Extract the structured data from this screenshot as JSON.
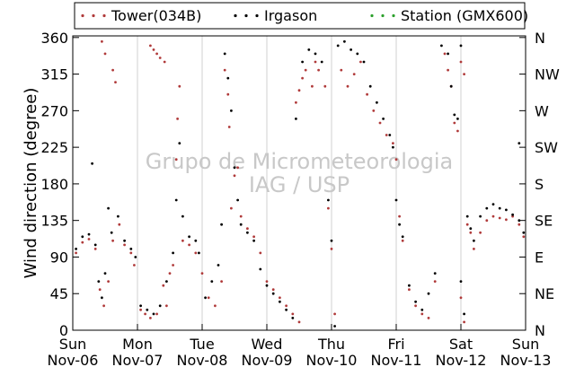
{
  "chart_data": {
    "type": "scatter",
    "ylabel": "Wind direction (degree)",
    "ylim": [
      0,
      362
    ],
    "xlim": [
      "2016-11-06",
      "2016-11-13"
    ],
    "y_ticks": [
      0,
      45,
      90,
      135,
      180,
      225,
      270,
      315,
      360
    ],
    "y2_ticks": [
      {
        "value": 0,
        "label": "N"
      },
      {
        "value": 45,
        "label": "NE"
      },
      {
        "value": 90,
        "label": "E"
      },
      {
        "value": 135,
        "label": "SE"
      },
      {
        "value": 180,
        "label": "S"
      },
      {
        "value": 225,
        "label": "SW"
      },
      {
        "value": 270,
        "label": "W"
      },
      {
        "value": 315,
        "label": "NW"
      },
      {
        "value": 360,
        "label": "N"
      }
    ],
    "x_ticks": [
      {
        "day": 0,
        "top": "Sun",
        "bottom": "Nov-06"
      },
      {
        "day": 1,
        "top": "Mon",
        "bottom": "Nov-07"
      },
      {
        "day": 2,
        "top": "Tue",
        "bottom": "Nov-08"
      },
      {
        "day": 3,
        "top": "Wed",
        "bottom": "Nov-09"
      },
      {
        "day": 4,
        "top": "Thu",
        "bottom": "Nov-10"
      },
      {
        "day": 5,
        "top": "Fri",
        "bottom": "Nov-11"
      },
      {
        "day": 6,
        "top": "Sat",
        "bottom": "Nov-12"
      },
      {
        "day": 7,
        "top": "Sun",
        "bottom": "Nov-13"
      }
    ],
    "grid": "vertical",
    "legend_position": "top",
    "watermark": [
      "Grupo de Micrometeorologia",
      "IAG / USP"
    ],
    "series": [
      {
        "name": "Tower(034B)",
        "color": "#b03a3a",
        "points": [
          [
            0.05,
            95
          ],
          [
            0.15,
            108
          ],
          [
            0.25,
            112
          ],
          [
            0.35,
            100
          ],
          [
            0.42,
            50
          ],
          [
            0.48,
            30
          ],
          [
            0.55,
            60
          ],
          [
            0.62,
            110
          ],
          [
            0.72,
            130
          ],
          [
            0.8,
            105
          ],
          [
            0.9,
            95
          ],
          [
            0.95,
            80
          ],
          [
            0.62,
            320
          ],
          [
            0.66,
            305
          ],
          [
            0.45,
            355
          ],
          [
            0.5,
            340
          ],
          [
            1.05,
            25
          ],
          [
            1.12,
            20
          ],
          [
            1.2,
            15
          ],
          [
            1.3,
            20
          ],
          [
            1.4,
            55
          ],
          [
            1.45,
            30
          ],
          [
            1.5,
            70
          ],
          [
            1.55,
            80
          ],
          [
            1.6,
            210
          ],
          [
            1.62,
            260
          ],
          [
            1.65,
            300
          ],
          [
            1.2,
            350
          ],
          [
            1.25,
            345
          ],
          [
            1.3,
            340
          ],
          [
            1.35,
            335
          ],
          [
            1.42,
            330
          ],
          [
            1.7,
            110
          ],
          [
            1.8,
            105
          ],
          [
            1.9,
            95
          ],
          [
            2.0,
            70
          ],
          [
            2.1,
            40
          ],
          [
            2.2,
            30
          ],
          [
            2.3,
            60
          ],
          [
            2.35,
            320
          ],
          [
            2.4,
            290
          ],
          [
            2.42,
            250
          ],
          [
            2.45,
            150
          ],
          [
            2.5,
            190
          ],
          [
            2.55,
            200
          ],
          [
            2.6,
            140
          ],
          [
            2.7,
            125
          ],
          [
            2.8,
            115
          ],
          [
            2.9,
            95
          ],
          [
            3.0,
            60
          ],
          [
            3.1,
            50
          ],
          [
            3.2,
            40
          ],
          [
            3.3,
            30
          ],
          [
            3.4,
            20
          ],
          [
            3.5,
            10
          ],
          [
            3.45,
            280
          ],
          [
            3.5,
            295
          ],
          [
            3.55,
            310
          ],
          [
            3.6,
            320
          ],
          [
            3.7,
            300
          ],
          [
            3.75,
            330
          ],
          [
            3.8,
            320
          ],
          [
            3.9,
            300
          ],
          [
            3.95,
            150
          ],
          [
            4.0,
            100
          ],
          [
            4.05,
            20
          ],
          [
            4.15,
            320
          ],
          [
            4.25,
            300
          ],
          [
            4.35,
            315
          ],
          [
            4.45,
            330
          ],
          [
            4.55,
            290
          ],
          [
            4.65,
            270
          ],
          [
            4.75,
            255
          ],
          [
            4.85,
            240
          ],
          [
            4.95,
            230
          ],
          [
            5.0,
            210
          ],
          [
            5.05,
            140
          ],
          [
            5.1,
            110
          ],
          [
            5.2,
            50
          ],
          [
            5.3,
            30
          ],
          [
            5.4,
            20
          ],
          [
            5.5,
            15
          ],
          [
            5.6,
            60
          ],
          [
            5.75,
            340
          ],
          [
            5.8,
            320
          ],
          [
            5.85,
            300
          ],
          [
            5.9,
            255
          ],
          [
            5.95,
            245
          ],
          [
            6.0,
            40
          ],
          [
            6.05,
            10
          ],
          [
            6.1,
            130
          ],
          [
            6.15,
            120
          ],
          [
            6.2,
            100
          ],
          [
            6.3,
            120
          ],
          [
            6.4,
            135
          ],
          [
            6.5,
            140
          ],
          [
            6.6,
            138
          ],
          [
            6.7,
            136
          ],
          [
            6.8,
            140
          ],
          [
            6.9,
            130
          ],
          [
            6.97,
            115
          ],
          [
            6.0,
            330
          ],
          [
            6.05,
            315
          ]
        ]
      },
      {
        "name": "Irgason",
        "color": "#000000",
        "points": [
          [
            0.05,
            100
          ],
          [
            0.15,
            115
          ],
          [
            0.25,
            118
          ],
          [
            0.3,
            205
          ],
          [
            0.35,
            105
          ],
          [
            0.4,
            60
          ],
          [
            0.45,
            40
          ],
          [
            0.5,
            70
          ],
          [
            0.55,
            150
          ],
          [
            0.6,
            120
          ],
          [
            0.7,
            140
          ],
          [
            0.8,
            110
          ],
          [
            0.9,
            100
          ],
          [
            0.97,
            90
          ],
          [
            1.05,
            30
          ],
          [
            1.15,
            25
          ],
          [
            1.25,
            20
          ],
          [
            1.35,
            30
          ],
          [
            1.45,
            60
          ],
          [
            1.55,
            95
          ],
          [
            1.6,
            160
          ],
          [
            1.65,
            230
          ],
          [
            1.7,
            140
          ],
          [
            1.8,
            115
          ],
          [
            1.9,
            110
          ],
          [
            1.95,
            95
          ],
          [
            2.05,
            40
          ],
          [
            2.15,
            60
          ],
          [
            2.25,
            80
          ],
          [
            2.3,
            130
          ],
          [
            2.35,
            340
          ],
          [
            2.4,
            310
          ],
          [
            2.45,
            270
          ],
          [
            2.5,
            200
          ],
          [
            2.55,
            160
          ],
          [
            2.6,
            130
          ],
          [
            2.7,
            120
          ],
          [
            2.8,
            110
          ],
          [
            2.9,
            75
          ],
          [
            3.0,
            55
          ],
          [
            3.1,
            45
          ],
          [
            3.2,
            35
          ],
          [
            3.3,
            25
          ],
          [
            3.4,
            15
          ],
          [
            3.45,
            260
          ],
          [
            3.55,
            330
          ],
          [
            3.65,
            345
          ],
          [
            3.75,
            340
          ],
          [
            3.85,
            330
          ],
          [
            3.95,
            160
          ],
          [
            4.0,
            110
          ],
          [
            4.05,
            5
          ],
          [
            4.1,
            350
          ],
          [
            4.2,
            355
          ],
          [
            4.3,
            345
          ],
          [
            4.4,
            340
          ],
          [
            4.5,
            330
          ],
          [
            4.6,
            300
          ],
          [
            4.7,
            280
          ],
          [
            4.8,
            260
          ],
          [
            4.9,
            240
          ],
          [
            4.95,
            225
          ],
          [
            5.0,
            160
          ],
          [
            5.05,
            130
          ],
          [
            5.1,
            115
          ],
          [
            5.2,
            55
          ],
          [
            5.3,
            35
          ],
          [
            5.4,
            25
          ],
          [
            5.5,
            45
          ],
          [
            5.6,
            70
          ],
          [
            5.7,
            350
          ],
          [
            5.8,
            340
          ],
          [
            5.85,
            300
          ],
          [
            5.9,
            265
          ],
          [
            5.95,
            260
          ],
          [
            6.0,
            60
          ],
          [
            6.05,
            20
          ],
          [
            6.1,
            140
          ],
          [
            6.15,
            125
          ],
          [
            6.2,
            110
          ],
          [
            6.3,
            140
          ],
          [
            6.4,
            150
          ],
          [
            6.5,
            155
          ],
          [
            6.6,
            150
          ],
          [
            6.7,
            148
          ],
          [
            6.8,
            142
          ],
          [
            6.9,
            135
          ],
          [
            6.97,
            120
          ],
          [
            6.0,
            350
          ],
          [
            6.9,
            230
          ]
        ]
      },
      {
        "name": "Station (GMX600)",
        "color": "#2ca02c",
        "points": []
      }
    ]
  }
}
